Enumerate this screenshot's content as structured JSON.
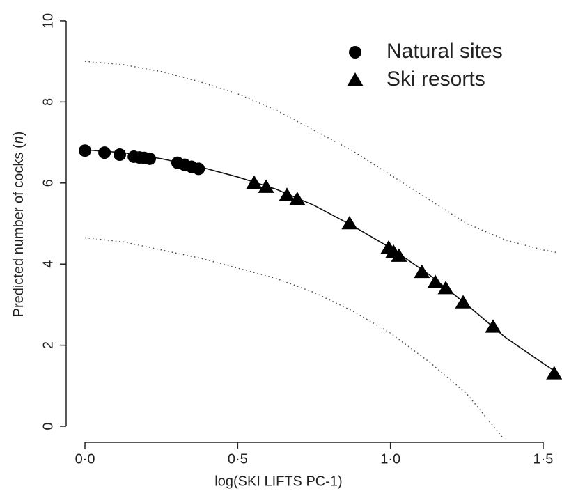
{
  "chart_data": {
    "type": "scatter",
    "xlabel": "log(SKI LIFTS PC-1)",
    "ylabel": [
      "Predicted number of cocks (",
      "n",
      ")"
    ],
    "xlim": [
      -0.06,
      1.56
    ],
    "ylim": [
      -0.3,
      10.3
    ],
    "xticks": [
      {
        "value": 0,
        "label": "0·0"
      },
      {
        "value": 0.5,
        "label": "0·5"
      },
      {
        "value": 1,
        "label": "1·0"
      },
      {
        "value": 1.5,
        "label": "1·5"
      }
    ],
    "yticks": [
      0,
      2,
      4,
      6,
      8,
      10
    ],
    "legend": "top-right",
    "series": [
      {
        "name": "Natural sites",
        "marker": "circle",
        "color": "#000000",
        "x": [
          0,
          0.064,
          0.114,
          0.16,
          0.178,
          0.194,
          0.212,
          0.303,
          0.326,
          0.349,
          0.372
        ],
        "values": [
          6.8,
          6.75,
          6.7,
          6.65,
          6.63,
          6.62,
          6.6,
          6.5,
          6.45,
          6.4,
          6.35
        ]
      },
      {
        "name": "Ski resorts",
        "marker": "triangle",
        "color": "#000000",
        "x": [
          0.554,
          0.593,
          0.661,
          0.695,
          0.866,
          0.994,
          1.01,
          1.028,
          1.103,
          1.147,
          1.181,
          1.238,
          1.336,
          1.536
        ],
        "values": [
          6.0,
          5.9,
          5.7,
          5.6,
          5.0,
          4.4,
          4.3,
          4.2,
          3.8,
          3.55,
          3.4,
          3.05,
          2.45,
          1.3
        ]
      }
    ],
    "curves": {
      "x": [
        0,
        0.125,
        0.25,
        0.375,
        0.5,
        0.625,
        0.75,
        0.875,
        1.0,
        1.125,
        1.25,
        1.375,
        1.5,
        1.55
      ],
      "fit": [
        6.82,
        6.75,
        6.6,
        6.4,
        6.15,
        5.85,
        5.45,
        4.95,
        4.4,
        3.75,
        3.0,
        2.2,
        1.55,
        1.3
      ],
      "upper": [
        9.0,
        8.92,
        8.75,
        8.5,
        8.2,
        7.8,
        7.3,
        6.8,
        6.2,
        5.6,
        5.0,
        4.6,
        4.35,
        4.28
      ],
      "lower": [
        4.65,
        4.55,
        4.35,
        4.15,
        3.9,
        3.65,
        3.3,
        2.85,
        2.3,
        1.6,
        0.8,
        -0.35,
        -1.0,
        -1.3
      ]
    }
  }
}
